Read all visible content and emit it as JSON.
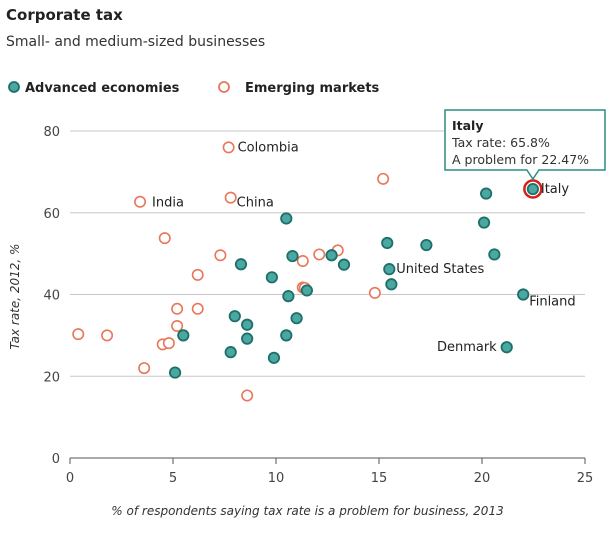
{
  "header": {
    "title": "Corporate tax",
    "subtitle": "Small- and medium-sized businesses"
  },
  "colors": {
    "advanced_fill": "#4aa8a0",
    "advanced_stroke": "#1e6f69",
    "emerging_fill": "#ffffff",
    "emerging_stroke": "#e8765a",
    "highlight_ring": "#d6201a",
    "grid": "#c8c8c8",
    "tooltip_border": "#2a8f86"
  },
  "chart_data": {
    "type": "scatter",
    "title": "Corporate tax",
    "subtitle": "Small- and medium-sized businesses",
    "xlabel": "% of respondents saying tax rate is a problem for business, 2013",
    "ylabel": "Tax rate, 2012, %",
    "xlim": [
      0,
      25
    ],
    "ylim": [
      0,
      80
    ],
    "xticks": [
      0,
      5,
      10,
      15,
      20,
      25
    ],
    "yticks": [
      0,
      20,
      40,
      60,
      80
    ],
    "grid": "horizontal",
    "legend_position": "top-left",
    "series": [
      {
        "name": "Advanced economies",
        "points": [
          {
            "x": 5.1,
            "y": 20.9
          },
          {
            "x": 5.5,
            "y": 30.0
          },
          {
            "x": 7.8,
            "y": 25.9
          },
          {
            "x": 8.0,
            "y": 34.7
          },
          {
            "x": 8.6,
            "y": 32.6
          },
          {
            "x": 8.6,
            "y": 29.2
          },
          {
            "x": 8.3,
            "y": 47.4
          },
          {
            "x": 9.9,
            "y": 24.5
          },
          {
            "x": 9.8,
            "y": 44.2
          },
          {
            "x": 10.5,
            "y": 58.6
          },
          {
            "x": 10.8,
            "y": 49.4
          },
          {
            "x": 10.5,
            "y": 30.0
          },
          {
            "x": 10.6,
            "y": 39.6
          },
          {
            "x": 11.0,
            "y": 34.2
          },
          {
            "x": 11.5,
            "y": 41.0
          },
          {
            "x": 12.7,
            "y": 49.6
          },
          {
            "x": 13.3,
            "y": 47.3
          },
          {
            "x": 15.4,
            "y": 52.6
          },
          {
            "x": 15.6,
            "y": 42.5
          },
          {
            "x": 17.3,
            "y": 52.1
          },
          {
            "x": 20.2,
            "y": 64.7
          },
          {
            "x": 20.1,
            "y": 57.6
          },
          {
            "x": 20.6,
            "y": 49.8
          },
          {
            "x": 15.5,
            "y": 46.2,
            "label": "United States"
          },
          {
            "x": 22.0,
            "y": 40.0,
            "label": "Finland"
          },
          {
            "x": 21.2,
            "y": 27.1,
            "label": "Denmark"
          },
          {
            "x": 22.47,
            "y": 65.8,
            "label": "Italy",
            "highlight": true
          }
        ]
      },
      {
        "name": "Emerging markets",
        "points": [
          {
            "x": 0.4,
            "y": 30.3
          },
          {
            "x": 1.8,
            "y": 30.0
          },
          {
            "x": 3.6,
            "y": 22.0
          },
          {
            "x": 3.4,
            "y": 62.7,
            "label": "India"
          },
          {
            "x": 4.6,
            "y": 53.8
          },
          {
            "x": 4.5,
            "y": 27.8
          },
          {
            "x": 4.8,
            "y": 28.1
          },
          {
            "x": 5.2,
            "y": 36.5
          },
          {
            "x": 5.2,
            "y": 32.3
          },
          {
            "x": 6.2,
            "y": 44.8
          },
          {
            "x": 6.2,
            "y": 36.5
          },
          {
            "x": 7.3,
            "y": 49.6
          },
          {
            "x": 7.7,
            "y": 76.0,
            "label": "Colombia"
          },
          {
            "x": 7.8,
            "y": 63.7,
            "label": "China"
          },
          {
            "x": 8.6,
            "y": 15.3
          },
          {
            "x": 11.3,
            "y": 48.2
          },
          {
            "x": 11.3,
            "y": 41.7
          },
          {
            "x": 11.4,
            "y": 41.6
          },
          {
            "x": 12.1,
            "y": 49.8
          },
          {
            "x": 13.0,
            "y": 50.8
          },
          {
            "x": 14.8,
            "y": 40.4
          },
          {
            "x": 15.2,
            "y": 68.3
          }
        ]
      }
    ],
    "tooltip": {
      "title": "Italy",
      "line1": "Tax rate: 65.8%",
      "line2": "A problem for 22.47%"
    }
  }
}
